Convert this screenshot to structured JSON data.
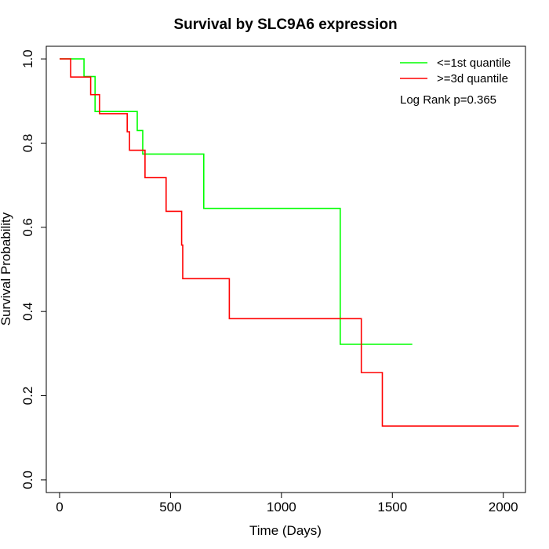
{
  "chart_data": {
    "type": "line",
    "step": true,
    "title": "Survival by SLC9A6 expression",
    "xlabel": "Time (Days)",
    "ylabel": "Survival Probability",
    "xlim": [
      -60,
      2100
    ],
    "ylim": [
      -0.03,
      1.03
    ],
    "xticks": [
      0,
      500,
      1000,
      1500,
      2000
    ],
    "yticks": [
      0.0,
      0.2,
      0.4,
      0.6,
      0.8,
      1.0
    ],
    "xtick_labels": [
      "0",
      "500",
      "1000",
      "1500",
      "2000"
    ],
    "ytick_labels": [
      "0.0",
      "0.2",
      "0.4",
      "0.6",
      "0.8",
      "1.0"
    ],
    "grid": false,
    "legend_position": "top-right",
    "annotation": "Log Rank p=0.365",
    "series": [
      {
        "name": "<=1st quantile",
        "color": "#00ff00",
        "points": [
          [
            0,
            1.0
          ],
          [
            110,
            1.0
          ],
          [
            110,
            0.958
          ],
          [
            160,
            0.958
          ],
          [
            160,
            0.875
          ],
          [
            350,
            0.875
          ],
          [
            350,
            0.83
          ],
          [
            375,
            0.83
          ],
          [
            375,
            0.774
          ],
          [
            650,
            0.774
          ],
          [
            650,
            0.645
          ],
          [
            1265,
            0.645
          ],
          [
            1265,
            0.322
          ],
          [
            1590,
            0.322
          ]
        ]
      },
      {
        "name": ">=3d quantile",
        "color": "#ff0000",
        "points": [
          [
            0,
            1.0
          ],
          [
            50,
            1.0
          ],
          [
            50,
            0.957
          ],
          [
            140,
            0.957
          ],
          [
            140,
            0.915
          ],
          [
            180,
            0.915
          ],
          [
            180,
            0.87
          ],
          [
            305,
            0.87
          ],
          [
            305,
            0.827
          ],
          [
            315,
            0.827
          ],
          [
            315,
            0.783
          ],
          [
            385,
            0.783
          ],
          [
            385,
            0.718
          ],
          [
            480,
            0.718
          ],
          [
            480,
            0.638
          ],
          [
            550,
            0.638
          ],
          [
            550,
            0.558
          ],
          [
            555,
            0.558
          ],
          [
            555,
            0.478
          ],
          [
            765,
            0.478
          ],
          [
            765,
            0.383
          ],
          [
            1360,
            0.383
          ],
          [
            1360,
            0.255
          ],
          [
            1455,
            0.255
          ],
          [
            1455,
            0.128
          ],
          [
            2070,
            0.128
          ]
        ]
      }
    ]
  }
}
